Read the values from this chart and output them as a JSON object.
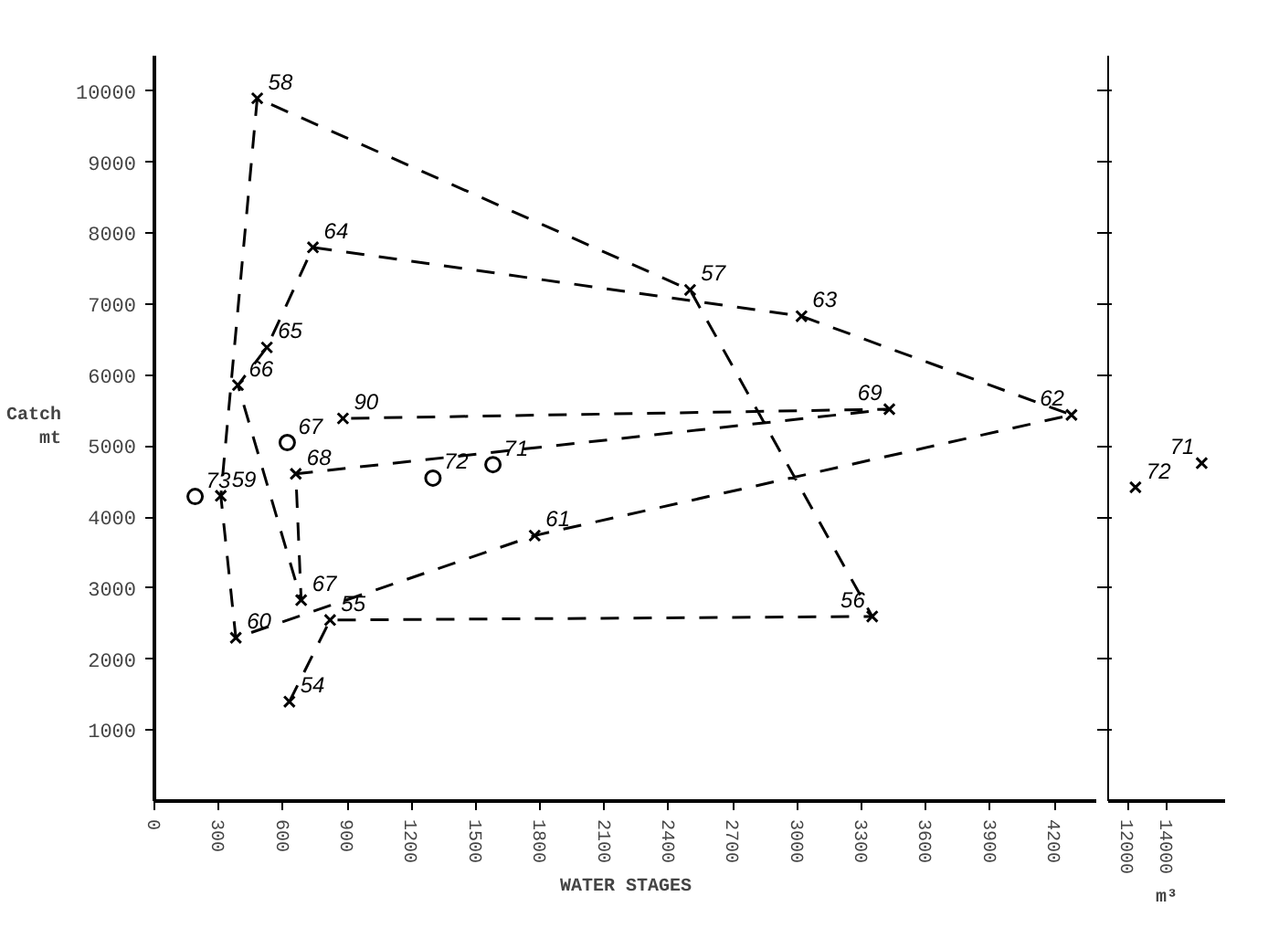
{
  "chart_data": [
    {
      "type": "line",
      "xlabel": "WATER STAGES",
      "ylabel": "Catch\nmt",
      "xlim": [
        0,
        4400
      ],
      "ylim": [
        0,
        10500
      ],
      "xticks": [
        0,
        300,
        600,
        900,
        1200,
        1500,
        1800,
        2100,
        2400,
        2700,
        3000,
        3300,
        3600,
        3900,
        4200
      ],
      "yticks": [
        1000,
        2000,
        3000,
        4000,
        5000,
        6000,
        7000,
        8000,
        9000,
        10000
      ],
      "series": [
        {
          "color": "#000000",
          "marker": "cross",
          "line_style": "dashed",
          "x": [
            630,
            820,
            3350,
            2500,
            480,
            310,
            380,
            1775,
            4280,
            3020,
            740,
            525,
            390,
            685,
            660,
            3430,
            880
          ],
          "values": [
            1400,
            2550,
            2600,
            7200,
            9900,
            4300,
            2300,
            3740,
            5440,
            6830,
            7800,
            6390,
            5860,
            2830,
            4610,
            5520,
            5390
          ]
        },
        {
          "type": "scatter",
          "color": "#000000",
          "marker": "circle",
          "x": [
            620,
            1580,
            1300,
            190
          ],
          "values": [
            5050,
            4740,
            4550,
            4290
          ]
        }
      ],
      "annotations": [
        {
          "text": "54",
          "x": 630,
          "y": 1400
        },
        {
          "text": "55",
          "x": 820,
          "y": 2550
        },
        {
          "text": "56",
          "x": 3350,
          "y": 2600
        },
        {
          "text": "57",
          "x": 2500,
          "y": 7200
        },
        {
          "text": "58",
          "x": 480,
          "y": 9900
        },
        {
          "text": "59",
          "x": 310,
          "y": 4300
        },
        {
          "text": "60",
          "x": 380,
          "y": 2300
        },
        {
          "text": "61",
          "x": 1775,
          "y": 3740
        },
        {
          "text": "62",
          "x": 4280,
          "y": 5440
        },
        {
          "text": "63",
          "x": 3020,
          "y": 6830
        },
        {
          "text": "64",
          "x": 740,
          "y": 7800
        },
        {
          "text": "65",
          "x": 525,
          "y": 6390
        },
        {
          "text": "66",
          "x": 390,
          "y": 5860
        },
        {
          "text": "67",
          "x": 685,
          "y": 2830
        },
        {
          "text": "68",
          "x": 660,
          "y": 4610
        },
        {
          "text": "69",
          "x": 3430,
          "y": 5520
        },
        {
          "text": "90",
          "x": 880,
          "y": 5390
        },
        {
          "text": "67",
          "x": 620,
          "y": 5050
        },
        {
          "text": "71",
          "x": 1580,
          "y": 4740
        },
        {
          "text": "72",
          "x": 1300,
          "y": 4550
        },
        {
          "text": "73",
          "x": 190,
          "y": 4290
        }
      ]
    },
    {
      "type": "scatter",
      "xlabel": "m³",
      "xlim": [
        11000,
        17000
      ],
      "ylim": [
        0,
        10500
      ],
      "xticks": [
        12000,
        14000
      ],
      "yticks": [
        1000,
        2000,
        3000,
        4000,
        5000,
        6000,
        7000,
        8000,
        9000,
        10000
      ],
      "tick_labels": "x",
      "series": [
        {
          "color": "#000000",
          "marker": "cross",
          "x": [
            15800,
            12400
          ],
          "values": [
            4760,
            4420
          ]
        }
      ],
      "annotations": [
        {
          "text": "71",
          "x": 15800,
          "y": 4760
        },
        {
          "text": "72",
          "x": 12400,
          "y": 4420
        }
      ]
    }
  ]
}
